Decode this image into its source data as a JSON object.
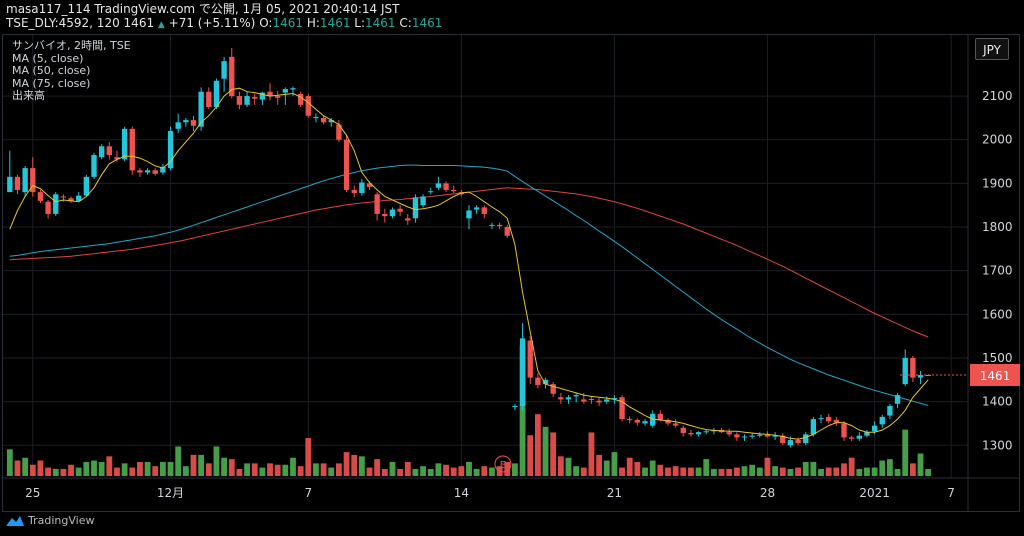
{
  "header": {
    "line1": "masa117_114 TradingView.com で公開, 1月 05, 2021 20:40:14 JST",
    "symbol": "TSE_DLY:4592, 120",
    "last": "1461",
    "change": "+71 (+5.11%)",
    "o_label": "O:",
    "o_value": "1461",
    "h_label": "H:",
    "h_value": "1461",
    "l_label": "L:",
    "l_value": "1461",
    "c_label": "C:",
    "c_value": "1461"
  },
  "legend": {
    "title": "サンバイオ, 2時間, TSE",
    "ma5": "MA (5, close)",
    "ma50": "MA (50, close)",
    "ma75": "MA (75, close)",
    "volume": "出来高"
  },
  "currency_button": "JPY",
  "branding": "TradingView",
  "earnings_marker": "E",
  "colors": {
    "up": "#26c6da",
    "down": "#ef5350",
    "vol_up": "#4caf50",
    "vol_down": "#ef5350",
    "ma5": "#e5c52b",
    "ma50": "#26a6c7",
    "ma75": "#e0453c",
    "price_badge": "#ef5350",
    "grid": "#1c1f26",
    "axis_text": "#d1d4dc"
  },
  "chart_data": {
    "type": "candlestick",
    "y_ticks": [
      1300,
      1400,
      1500,
      1600,
      1700,
      1800,
      1900,
      2000,
      2100
    ],
    "ylim": [
      1225,
      2240
    ],
    "x_ticks": [
      {
        "label": "25",
        "i": 3
      },
      {
        "label": "12月",
        "i": 21
      },
      {
        "label": "7",
        "i": 39
      },
      {
        "label": "14",
        "i": 59
      },
      {
        "label": "21",
        "i": 79
      },
      {
        "label": "28",
        "i": 99
      },
      {
        "label": "2021",
        "i": 113
      },
      {
        "label": "7",
        "i": 123
      }
    ],
    "last_price": 1461,
    "earnings_index": 66,
    "ohlc": [
      [
        1880,
        1975,
        1880,
        1915
      ],
      [
        1915,
        1920,
        1875,
        1885
      ],
      [
        1880,
        1940,
        1870,
        1935
      ],
      [
        1935,
        1960,
        1870,
        1880
      ],
      [
        1880,
        1885,
        1855,
        1860
      ],
      [
        1858,
        1862,
        1820,
        1830
      ],
      [
        1830,
        1880,
        1825,
        1875
      ],
      [
        1870,
        1875,
        1858,
        1868
      ],
      [
        1866,
        1870,
        1855,
        1860
      ],
      [
        1860,
        1880,
        1858,
        1872
      ],
      [
        1872,
        1920,
        1870,
        1915
      ],
      [
        1915,
        1970,
        1910,
        1965
      ],
      [
        1960,
        1990,
        1955,
        1985
      ],
      [
        1985,
        1995,
        1955,
        1965
      ],
      [
        1960,
        1975,
        1950,
        1955
      ],
      [
        1955,
        2030,
        1950,
        2025
      ],
      [
        2025,
        2030,
        1920,
        1930
      ],
      [
        1930,
        1935,
        1915,
        1925
      ],
      [
        1925,
        1935,
        1920,
        1930
      ],
      [
        1930,
        1935,
        1918,
        1922
      ],
      [
        1925,
        1945,
        1920,
        1938
      ],
      [
        1935,
        2030,
        1930,
        2020
      ],
      [
        2025,
        2060,
        2015,
        2040
      ],
      [
        2040,
        2050,
        2030,
        2045
      ],
      [
        2045,
        2055,
        2020,
        2032
      ],
      [
        2030,
        2120,
        2020,
        2110
      ],
      [
        2110,
        2120,
        2070,
        2075
      ],
      [
        2075,
        2140,
        2070,
        2135
      ],
      [
        2140,
        2190,
        2110,
        2180
      ],
      [
        2190,
        2210,
        2095,
        2100
      ],
      [
        2100,
        2110,
        2070,
        2080
      ],
      [
        2080,
        2110,
        2075,
        2100
      ],
      [
        2098,
        2105,
        2080,
        2094
      ],
      [
        2092,
        2110,
        2080,
        2108
      ],
      [
        2110,
        2130,
        2090,
        2100
      ],
      [
        2100,
        2112,
        2080,
        2096
      ],
      [
        2108,
        2120,
        2080,
        2116
      ],
      [
        2115,
        2122,
        2100,
        2118
      ],
      [
        2105,
        2110,
        2075,
        2080
      ],
      [
        2100,
        2105,
        2050,
        2055
      ],
      [
        2050,
        2060,
        2040,
        2052
      ],
      [
        2050,
        2055,
        2035,
        2040
      ],
      [
        2040,
        2050,
        2030,
        2045
      ],
      [
        2035,
        2045,
        1995,
        2000
      ],
      [
        2000,
        2010,
        1880,
        1885
      ],
      [
        1885,
        1895,
        1868,
        1878
      ],
      [
        1878,
        1910,
        1872,
        1902
      ],
      [
        1900,
        1905,
        1885,
        1892
      ],
      [
        1875,
        1880,
        1815,
        1830
      ],
      [
        1830,
        1842,
        1810,
        1825
      ],
      [
        1825,
        1845,
        1820,
        1840
      ],
      [
        1842,
        1850,
        1825,
        1835
      ],
      [
        1820,
        1830,
        1805,
        1815
      ],
      [
        1820,
        1875,
        1810,
        1868
      ],
      [
        1850,
        1875,
        1845,
        1870
      ],
      [
        1880,
        1890,
        1875,
        1882
      ],
      [
        1890,
        1915,
        1885,
        1900
      ],
      [
        1900,
        1905,
        1880,
        1885
      ],
      [
        1885,
        1895,
        1878,
        1882
      ],
      [
        1880,
        1885,
        1870,
        1875
      ],
      [
        1820,
        1850,
        1795,
        1838
      ],
      [
        1840,
        1850,
        1830,
        1845
      ],
      [
        1845,
        1850,
        1820,
        1830
      ],
      [
        1805,
        1810,
        1795,
        1805
      ],
      [
        1805,
        1810,
        1795,
        1802
      ],
      [
        1800,
        1805,
        1775,
        1780
      ],
      [
        1390,
        1395,
        1380,
        1390
      ],
      [
        1390,
        1580,
        1380,
        1545
      ],
      [
        1540,
        1550,
        1440,
        1455
      ],
      [
        1455,
        1465,
        1430,
        1438
      ],
      [
        1440,
        1455,
        1430,
        1450
      ],
      [
        1440,
        1445,
        1410,
        1418
      ],
      [
        1410,
        1420,
        1395,
        1405
      ],
      [
        1405,
        1415,
        1395,
        1410
      ],
      [
        1412,
        1420,
        1398,
        1415
      ],
      [
        1405,
        1420,
        1395,
        1400
      ],
      [
        1406,
        1413,
        1395,
        1405
      ],
      [
        1402,
        1408,
        1390,
        1398
      ],
      [
        1400,
        1412,
        1395,
        1405
      ],
      [
        1407,
        1415,
        1395,
        1408
      ],
      [
        1410,
        1415,
        1355,
        1360
      ],
      [
        1360,
        1366,
        1350,
        1358
      ],
      [
        1358,
        1362,
        1345,
        1352
      ],
      [
        1350,
        1360,
        1345,
        1355
      ],
      [
        1345,
        1380,
        1340,
        1372
      ],
      [
        1372,
        1380,
        1355,
        1358
      ],
      [
        1358,
        1362,
        1345,
        1350
      ],
      [
        1350,
        1360,
        1340,
        1345
      ],
      [
        1340,
        1345,
        1320,
        1328
      ],
      [
        1328,
        1335,
        1320,
        1325
      ],
      [
        1325,
        1332,
        1320,
        1330
      ],
      [
        1330,
        1335,
        1325,
        1332
      ],
      [
        1332,
        1340,
        1325,
        1335
      ],
      [
        1335,
        1340,
        1328,
        1330
      ],
      [
        1330,
        1338,
        1320,
        1325
      ],
      [
        1325,
        1330,
        1310,
        1318
      ],
      [
        1318,
        1325,
        1310,
        1320
      ],
      [
        1320,
        1328,
        1315,
        1322
      ],
      [
        1322,
        1330,
        1318,
        1324
      ],
      [
        1324,
        1332,
        1318,
        1320
      ],
      [
        1320,
        1330,
        1312,
        1322
      ],
      [
        1322,
        1328,
        1300,
        1305
      ],
      [
        1300,
        1320,
        1295,
        1312
      ],
      [
        1312,
        1318,
        1300,
        1305
      ],
      [
        1305,
        1330,
        1300,
        1325
      ],
      [
        1325,
        1365,
        1320,
        1360
      ],
      [
        1360,
        1370,
        1350,
        1362
      ],
      [
        1365,
        1372,
        1350,
        1355
      ],
      [
        1358,
        1365,
        1345,
        1352
      ],
      [
        1350,
        1355,
        1310,
        1318
      ],
      [
        1318,
        1322,
        1310,
        1315
      ],
      [
        1315,
        1330,
        1310,
        1322
      ],
      [
        1322,
        1335,
        1318,
        1330
      ],
      [
        1332,
        1355,
        1325,
        1345
      ],
      [
        1348,
        1370,
        1340,
        1365
      ],
      [
        1368,
        1395,
        1360,
        1390
      ],
      [
        1395,
        1420,
        1385,
        1415
      ],
      [
        1440,
        1520,
        1435,
        1500
      ],
      [
        1500,
        1505,
        1445,
        1455
      ],
      [
        1455,
        1470,
        1440,
        1461
      ],
      [
        1461,
        1461,
        1461,
        1461
      ]
    ],
    "volume": [
      0.38,
      0.22,
      0.26,
      0.16,
      0.22,
      0.12,
      0.1,
      0.1,
      0.16,
      0.12,
      0.2,
      0.22,
      0.2,
      0.28,
      0.12,
      0.18,
      0.12,
      0.2,
      0.2,
      0.14,
      0.2,
      0.2,
      0.42,
      0.14,
      0.3,
      0.3,
      0.18,
      0.42,
      0.26,
      0.24,
      0.1,
      0.18,
      0.18,
      0.12,
      0.18,
      0.16,
      0.16,
      0.26,
      0.14,
      0.54,
      0.18,
      0.18,
      0.12,
      0.18,
      0.34,
      0.3,
      0.28,
      0.12,
      0.24,
      0.1,
      0.2,
      0.1,
      0.2,
      0.1,
      0.14,
      0.1,
      0.18,
      0.16,
      0.12,
      0.14,
      0.2,
      0.1,
      0.14,
      0.12,
      0.14,
      0.2,
      0.18,
      1.85,
      0.58,
      0.88,
      0.7,
      0.62,
      0.28,
      0.26,
      0.14,
      0.12,
      0.62,
      0.3,
      0.22,
      0.34,
      0.12,
      0.26,
      0.2,
      0.12,
      0.22,
      0.16,
      0.12,
      0.14,
      0.12,
      0.12,
      0.12,
      0.24,
      0.1,
      0.1,
      0.1,
      0.12,
      0.14,
      0.16,
      0.12,
      0.26,
      0.14,
      0.12,
      0.1,
      0.12,
      0.2,
      0.2,
      0.1,
      0.12,
      0.12,
      0.18,
      0.26,
      0.1,
      0.12,
      0.12,
      0.22,
      0.24,
      0.1,
      0.66,
      0.18,
      0.32,
      0.1
    ],
    "ma5": [
      1795,
      1838,
      1870,
      1895,
      1888,
      1872,
      1858,
      1862,
      1860,
      1858,
      1870,
      1890,
      1920,
      1945,
      1955,
      1962,
      1962,
      1958,
      1950,
      1940,
      1935,
      1950,
      1975,
      1995,
      2015,
      2040,
      2055,
      2075,
      2100,
      2115,
      2118,
      2110,
      2108,
      2104,
      2100,
      2102,
      2104,
      2106,
      2098,
      2085,
      2070,
      2055,
      2045,
      2035,
      2010,
      1975,
      1925,
      1902,
      1885,
      1870,
      1862,
      1854,
      1846,
      1840,
      1842,
      1845,
      1850,
      1860,
      1870,
      1878,
      1880,
      1870,
      1858,
      1846,
      1835,
      1820,
      1760,
      1650,
      1560,
      1470,
      1440,
      1435,
      1430,
      1425,
      1420,
      1415,
      1412,
      1410,
      1408,
      1405,
      1400,
      1388,
      1378,
      1368,
      1360,
      1358,
      1356,
      1354,
      1350,
      1345,
      1340,
      1336,
      1334,
      1333,
      1332,
      1332,
      1330,
      1328,
      1326,
      1325,
      1323,
      1320,
      1316,
      1314,
      1318,
      1325,
      1335,
      1345,
      1352,
      1352,
      1345,
      1335,
      1330,
      1330,
      1335,
      1345,
      1360,
      1380,
      1410,
      1430,
      1450
    ],
    "ma50": [
      1733,
      1735,
      1738,
      1741,
      1744,
      1746,
      1748,
      1750,
      1752,
      1754,
      1756,
      1758,
      1760,
      1762,
      1765,
      1768,
      1771,
      1774,
      1777,
      1780,
      1784,
      1788,
      1793,
      1798,
      1804,
      1810,
      1816,
      1822,
      1828,
      1834,
      1840,
      1846,
      1852,
      1858,
      1864,
      1870,
      1876,
      1882,
      1888,
      1894,
      1900,
      1906,
      1911,
      1916,
      1921,
      1925,
      1929,
      1932,
      1935,
      1937,
      1939,
      1941,
      1942,
      1942,
      1941,
      1941,
      1941,
      1941,
      1941,
      1940,
      1939,
      1938,
      1937,
      1935,
      1932,
      1928,
      1916,
      1904,
      1893,
      1882,
      1871,
      1860,
      1849,
      1838,
      1826,
      1815,
      1803,
      1791,
      1779,
      1767,
      1755,
      1742,
      1729,
      1716,
      1703,
      1690,
      1677,
      1664,
      1651,
      1638,
      1625,
      1612,
      1600,
      1588,
      1577,
      1566,
      1555,
      1544,
      1534,
      1524,
      1515,
      1506,
      1497,
      1489,
      1482,
      1475,
      1468,
      1461,
      1455,
      1449,
      1443,
      1437,
      1431,
      1426,
      1421,
      1416,
      1411,
      1406,
      1401,
      1396,
      1391
    ],
    "ma75": [
      1725,
      1726,
      1727,
      1728,
      1729,
      1730,
      1731,
      1732,
      1733,
      1735,
      1737,
      1739,
      1741,
      1743,
      1745,
      1747,
      1749,
      1752,
      1755,
      1758,
      1761,
      1764,
      1767,
      1771,
      1775,
      1779,
      1783,
      1787,
      1791,
      1795,
      1799,
      1803,
      1807,
      1811,
      1815,
      1819,
      1823,
      1827,
      1831,
      1835,
      1839,
      1842,
      1845,
      1848,
      1851,
      1853,
      1855,
      1857,
      1859,
      1861,
      1862,
      1863,
      1865,
      1866,
      1868,
      1870,
      1872,
      1874,
      1876,
      1878,
      1880,
      1882,
      1884,
      1886,
      1888,
      1890,
      1889,
      1888,
      1887,
      1886,
      1884,
      1882,
      1880,
      1878,
      1876,
      1873,
      1870,
      1866,
      1862,
      1858,
      1853,
      1848,
      1843,
      1837,
      1831,
      1825,
      1819,
      1813,
      1807,
      1800,
      1793,
      1786,
      1779,
      1772,
      1765,
      1758,
      1750,
      1742,
      1734,
      1726,
      1718,
      1710,
      1701,
      1692,
      1683,
      1674,
      1665,
      1656,
      1647,
      1638,
      1629,
      1620,
      1611,
      1602,
      1594,
      1586,
      1578,
      1570,
      1562,
      1555,
      1548
    ]
  }
}
